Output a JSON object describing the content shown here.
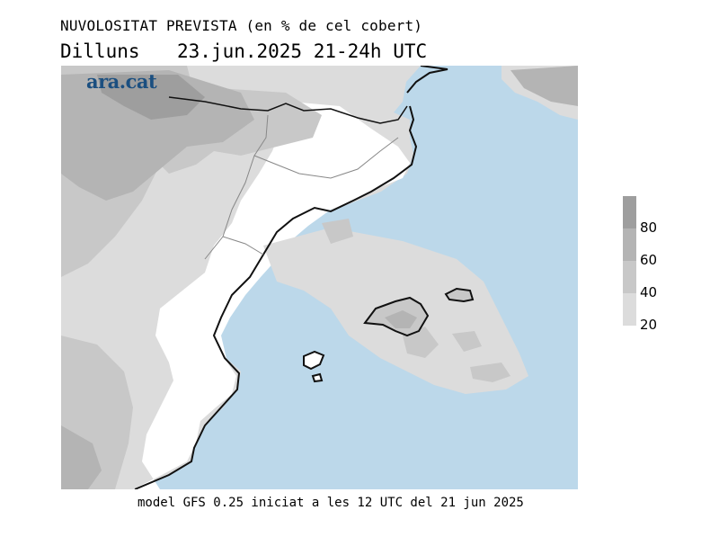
{
  "header": {
    "title": "NUVOLOSITAT PREVISTA (en % de cel cobert)",
    "day": "Dilluns",
    "datetime": "23.jun.2025 21-24h UTC"
  },
  "logo": {
    "text": "ara.cat"
  },
  "footer": {
    "text": "model GFS 0.25 iniciat a les 12 UTC del 21 jun 2025"
  },
  "legend": {
    "labels": [
      "80",
      "60",
      "40",
      "20"
    ],
    "colors": [
      "#9e9e9e",
      "#b4b4b4",
      "#c8c8c8",
      "#dcdcdc"
    ],
    "unit": "% de cel cobert"
  },
  "colors": {
    "sea": "#bcd8ea",
    "clear": "#ffffff",
    "cloud_light": "#dcdcdc",
    "cloud_mid": "#c8c8c8",
    "cloud_dark": "#b4b4b4",
    "cloud_darker": "#9e9e9e"
  }
}
